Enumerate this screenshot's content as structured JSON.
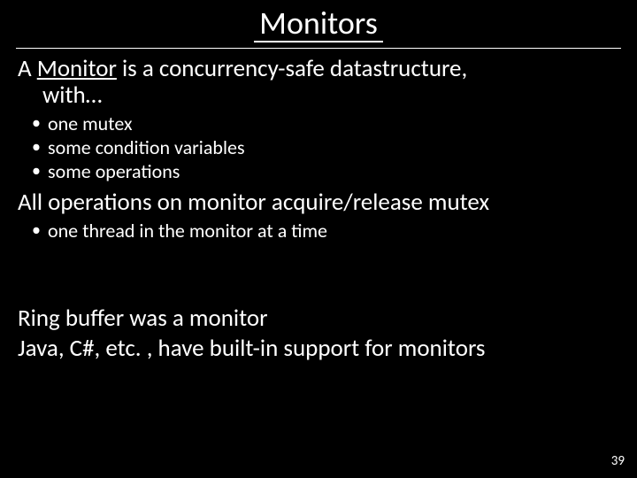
{
  "colors": {
    "background": "#000000",
    "text": "#ffffff",
    "rule": "#ffffff"
  },
  "typography": {
    "title_fontsize": 36,
    "body_fontsize": 27,
    "bullet_fontsize": 22,
    "pagenum_fontsize": 15,
    "font_family": "Calibri"
  },
  "title": "Monitors",
  "para1_prefix": "A ",
  "para1_underlined": "Monitor",
  "para1_suffix": " is a concurrency-safe datastructure,",
  "para1_cont": "with…",
  "bullets1": {
    "0": "one mutex",
    "1": "some condition variables",
    "2": "some operations"
  },
  "para2": "All operations on monitor acquire/release mutex",
  "bullets2": {
    "0": "one thread in the monitor at a time"
  },
  "para3": "Ring buffer was a monitor",
  "para4": "Java, C#, etc. , have built-in support for monitors",
  "page_number": "39"
}
